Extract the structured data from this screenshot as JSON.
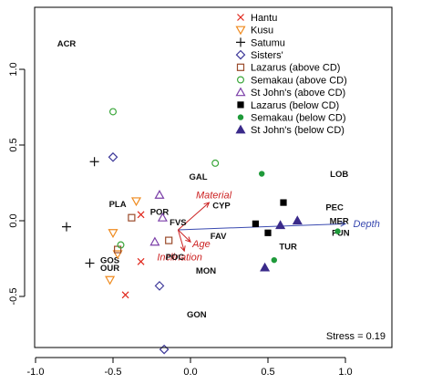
{
  "chart_data": {
    "type": "scatter",
    "xlim": [
      -1.0,
      1.0
    ],
    "ylim": [
      -0.85,
      1.35
    ],
    "x_ticks": [
      "-1.0",
      "-0.5",
      "0.0",
      "0.5",
      "1.0"
    ],
    "x_tick_values": [
      -1.0,
      -0.5,
      0.0,
      0.5,
      1.0
    ],
    "y_ticks": [
      "-0.5",
      "0.0",
      "0.5",
      "1.0"
    ],
    "y_tick_values": [
      -0.5,
      0.0,
      0.5,
      1.0
    ],
    "grid": false,
    "legend_position": "top-right",
    "stress_text": "Stress = 0.19",
    "series": [
      {
        "name": "Hantu",
        "marker": "cross-x",
        "color": "#e0261b",
        "filled": false,
        "points": [
          [
            -0.42,
            -0.49
          ],
          [
            -0.32,
            -0.27
          ],
          [
            -0.32,
            0.04
          ]
        ]
      },
      {
        "name": "Kusu",
        "marker": "triangle-down",
        "color": "#ef8a1e",
        "filled": false,
        "points": [
          [
            -0.35,
            0.13
          ],
          [
            -0.5,
            -0.08
          ],
          [
            -0.52,
            -0.39
          ],
          [
            -0.47,
            -0.22
          ]
        ]
      },
      {
        "name": "Satumu",
        "marker": "plus",
        "color": "#111111",
        "filled": false,
        "points": [
          [
            -0.62,
            0.39
          ],
          [
            -0.8,
            -0.04
          ],
          [
            -0.65,
            -0.28
          ]
        ]
      },
      {
        "name": "Sisters'",
        "marker": "diamond",
        "color": "#3f3a9a",
        "filled": false,
        "points": [
          [
            -0.5,
            0.42
          ],
          [
            -0.2,
            -0.43
          ],
          [
            -0.17,
            -0.85
          ]
        ]
      },
      {
        "name": "Lazarus (above CD)",
        "marker": "square",
        "color": "#9a4a2a",
        "filled": false,
        "points": [
          [
            -0.38,
            0.02
          ],
          [
            -0.14,
            -0.13
          ],
          [
            -0.47,
            -0.19
          ]
        ]
      },
      {
        "name": "Semakau (above CD)",
        "marker": "circle",
        "color": "#3aa63a",
        "filled": false,
        "points": [
          [
            -0.5,
            0.72
          ],
          [
            0.16,
            0.38
          ],
          [
            -0.45,
            -0.16
          ]
        ]
      },
      {
        "name": "St John's (above CD)",
        "marker": "triangle-up",
        "color": "#7b3fa8",
        "filled": false,
        "points": [
          [
            -0.2,
            0.17
          ],
          [
            -0.18,
            0.02
          ],
          [
            -0.23,
            -0.14
          ]
        ]
      },
      {
        "name": "Lazarus (below CD)",
        "marker": "square",
        "color": "#000000",
        "filled": true,
        "points": [
          [
            0.6,
            0.12
          ],
          [
            0.42,
            -0.02
          ],
          [
            0.5,
            -0.08
          ]
        ]
      },
      {
        "name": "Semakau (below CD)",
        "marker": "circle",
        "color": "#1f9a3a",
        "filled": true,
        "points": [
          [
            0.46,
            0.31
          ],
          [
            0.54,
            -0.26
          ],
          [
            0.95,
            -0.07
          ]
        ]
      },
      {
        "name": "St John's (below CD)",
        "marker": "triangle-up",
        "color": "#3a2a8a",
        "filled": true,
        "points": [
          [
            0.48,
            -0.31
          ],
          [
            0.58,
            -0.03
          ],
          [
            0.69,
            0.0
          ]
        ]
      }
    ],
    "taxa": [
      {
        "label": "ACR",
        "x": -0.8,
        "y": 1.17
      },
      {
        "label": "GAL",
        "x": 0.05,
        "y": 0.29
      },
      {
        "label": "LOB",
        "x": 0.96,
        "y": 0.31
      },
      {
        "label": "PLA",
        "x": -0.47,
        "y": 0.11
      },
      {
        "label": "POR",
        "x": -0.2,
        "y": 0.06
      },
      {
        "label": "CYP",
        "x": 0.2,
        "y": 0.1
      },
      {
        "label": "PEC",
        "x": 0.93,
        "y": 0.09
      },
      {
        "label": "FVS",
        "x": -0.08,
        "y": -0.01
      },
      {
        "label": "MER",
        "x": 0.96,
        "y": 0.0
      },
      {
        "label": "FUN",
        "x": 0.97,
        "y": -0.08
      },
      {
        "label": "FAV",
        "x": 0.18,
        "y": -0.1
      },
      {
        "label": "TUR",
        "x": 0.63,
        "y": -0.17
      },
      {
        "label": "GOS",
        "x": -0.52,
        "y": -0.26
      },
      {
        "label": "POC",
        "x": -0.1,
        "y": -0.24
      },
      {
        "label": "OUR",
        "x": -0.52,
        "y": -0.31
      },
      {
        "label": "MON",
        "x": 0.1,
        "y": -0.33
      },
      {
        "label": "GON",
        "x": 0.04,
        "y": -0.62
      }
    ],
    "vectors": [
      {
        "label": "Depth",
        "x": 1.0,
        "y": -0.02,
        "color": "#3a4ab0",
        "label_dx": 0.05,
        "label_dy": 0.0
      },
      {
        "label": "Material",
        "x": 0.12,
        "y": 0.12,
        "color": "#cc2222",
        "label_dx": 0.03,
        "label_dy": 0.05
      },
      {
        "label": "Age",
        "x": 0.0,
        "y": -0.14,
        "color": "#cc2222",
        "label_dx": 0.07,
        "label_dy": -0.01
      },
      {
        "label": "Inclination",
        "x": -0.04,
        "y": -0.2,
        "color": "#cc2222",
        "label_dx": -0.03,
        "label_dy": -0.04
      }
    ],
    "vector_origin": [
      -0.08,
      -0.06
    ]
  }
}
